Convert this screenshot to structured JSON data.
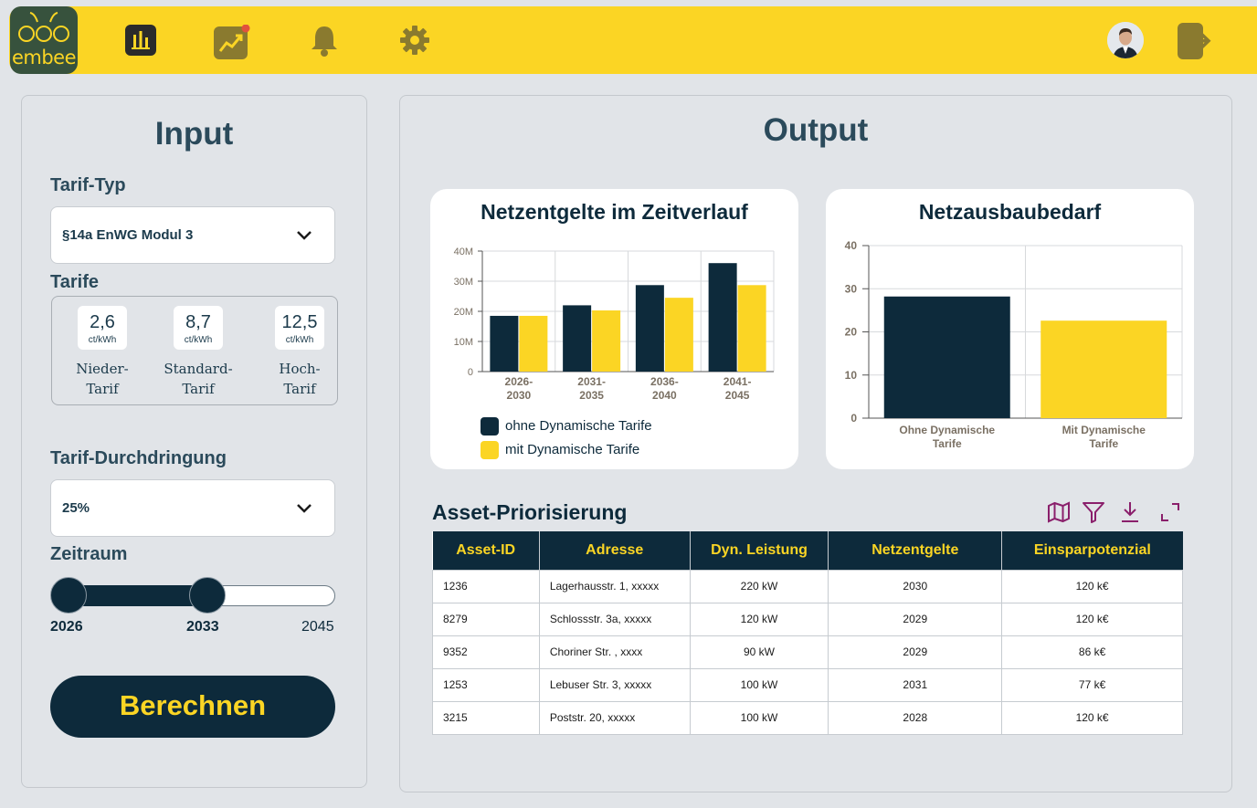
{
  "brand": {
    "name": "embee",
    "primary": "#fbd524",
    "dark": "#0d2a3b",
    "logo_bg": "#37523d",
    "notification": "#e1523d"
  },
  "nav": {
    "items": [
      {
        "name": "dashboard",
        "icon": "bar-chart-icon"
      },
      {
        "name": "trends",
        "icon": "trend-chart-icon",
        "badge": true
      },
      {
        "name": "notifications",
        "icon": "bell-icon"
      },
      {
        "name": "settings",
        "icon": "gear-icon"
      }
    ],
    "user_icon": "avatar",
    "logout_icon": "logout-icon"
  },
  "input": {
    "title": "Input",
    "tarif_typ": {
      "label": "Tarif-Typ",
      "value": "§14a EnWG Modul 3"
    },
    "tarife": {
      "label": "Tarife",
      "items": [
        {
          "value": "2,6",
          "unit": "ct/kWh",
          "name1": "Nieder-",
          "name2": "Tarif"
        },
        {
          "value": "8,7",
          "unit": "ct/kWh",
          "name1": "Standard-",
          "name2": "Tarif"
        },
        {
          "value": "12,5",
          "unit": "ct/kWh",
          "name1": "Hoch-",
          "name2": "Tarif"
        }
      ]
    },
    "durchdringung": {
      "label": "Tarif-Durchdringung",
      "value": "25%"
    },
    "zeitraum": {
      "label": "Zeitraum",
      "start": "2026",
      "selected": "2033",
      "end": "2045"
    },
    "button": "Berechnen"
  },
  "output": {
    "title": "Output",
    "table": {
      "title": "Asset-Priorisierung",
      "tools": [
        "map-icon",
        "filter-icon",
        "download-icon",
        "expand-icon"
      ],
      "columns": [
        "Asset-ID",
        "Adresse",
        "Dyn. Leistung",
        "Netzentgelte",
        "Einsparpotenzial"
      ],
      "rows": [
        [
          "1236",
          "Lagerhausstr. 1, xxxxx",
          "220 kW",
          "2030",
          "120 k€"
        ],
        [
          "8279",
          "Schlossstr. 3a, xxxxx",
          "120 kW",
          "2029",
          "120 k€"
        ],
        [
          "9352",
          "Choriner Str. , xxxx",
          "90 kW",
          "2029",
          "86 k€"
        ],
        [
          "1253",
          "Lebuser Str. 3, xxxxx",
          "100 kW",
          "2031",
          "77 k€"
        ],
        [
          "3215",
          "Poststr. 20, xxxxx",
          "100 kW",
          "2028",
          "120 k€"
        ]
      ]
    }
  },
  "chart_data": [
    {
      "type": "bar",
      "title": "Netzentgelte im Zeitverlauf",
      "categories": [
        "2026-\n2030",
        "2031-\n2035",
        "2036-\n2040",
        "2041-\n2045"
      ],
      "category_lines": [
        [
          "2026-",
          "2030"
        ],
        [
          "2031-",
          "2035"
        ],
        [
          "2036-",
          "2040"
        ],
        [
          "2041-",
          "2045"
        ]
      ],
      "yticks": [
        "0",
        "10M",
        "20M",
        "30M",
        "40M"
      ],
      "ylim": [
        0,
        40
      ],
      "series": [
        {
          "name": "ohne Dynamische Tarife",
          "color": "#0d2a3b",
          "values": [
            18.5,
            22,
            28.7,
            36
          ]
        },
        {
          "name": "mit Dynamische Tarife",
          "color": "#fbd524",
          "values": [
            18.5,
            20.3,
            24.5,
            28.7
          ]
        }
      ],
      "grid": true,
      "legend": "bottom-left"
    },
    {
      "type": "bar",
      "title": "Netzausbaubedarf",
      "categories": [
        "Ohne  Dynamische\nTarife",
        "Mit Dynamische\nTarife"
      ],
      "category_lines": [
        [
          "Ohne  Dynamische",
          "Tarife"
        ],
        [
          "Mit Dynamische",
          "Tarife"
        ]
      ],
      "yticks": [
        "0",
        "10",
        "20",
        "30",
        "40"
      ],
      "ylim": [
        0,
        40
      ],
      "values": [
        28.2,
        22.6
      ],
      "colors": [
        "#0d2a3b",
        "#fbd524"
      ],
      "grid": true
    }
  ]
}
